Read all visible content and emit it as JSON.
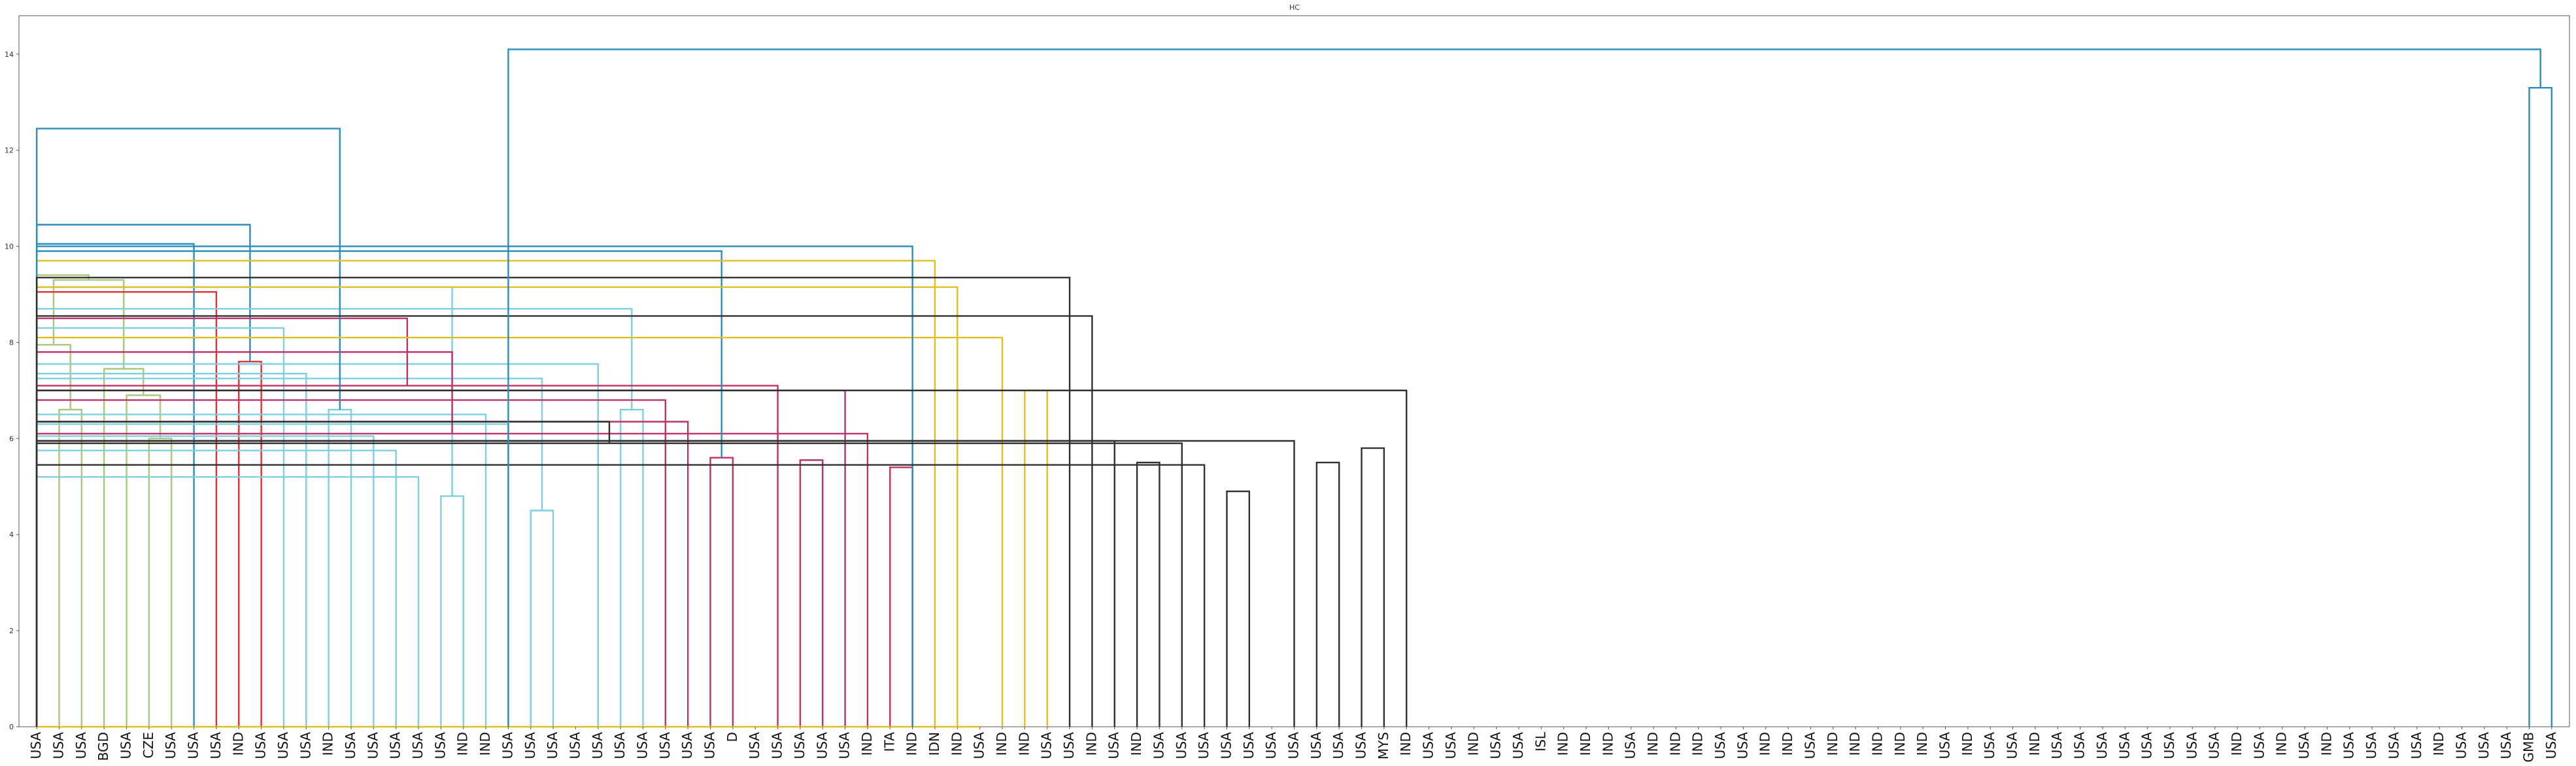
{
  "chart_data": {
    "type": "dendrogram",
    "title": "HC",
    "xlabel": "",
    "ylabel": "",
    "ylim": [
      0,
      14.8
    ],
    "yticks": [
      0,
      2,
      4,
      6,
      8,
      10,
      12,
      14
    ],
    "grid": false,
    "colors": {
      "olive": "#a8c97a",
      "blue": "#2b8cbe",
      "red": "#e03030",
      "cyan": "#7ecfe0",
      "magenta": "#c0306a",
      "yellow": "#e0c020",
      "black": "#303030"
    },
    "leaves": [
      "USA",
      "USA",
      "USA",
      "BGD",
      "USA",
      "CZE",
      "USA",
      "USA",
      "USA",
      "IND",
      "USA",
      "USA",
      "USA",
      "IND",
      "USA",
      "USA",
      "USA",
      "USA",
      "USA",
      "IND",
      "IND",
      "USA",
      "USA",
      "USA",
      "USA",
      "USA",
      "USA",
      "USA",
      "USA",
      "USA",
      "USA",
      "D",
      "USA",
      "USA",
      "USA",
      "USA",
      "USA",
      "IND",
      "ITA",
      "IND",
      "IDN",
      "IND",
      "USA",
      "IND",
      "IND",
      "USA",
      "USA",
      "IND",
      "USA",
      "IND",
      "USA",
      "USA",
      "USA",
      "USA",
      "USA",
      "USA",
      "USA",
      "USA",
      "USA",
      "USA",
      "MYS",
      "IND",
      "USA",
      "USA",
      "IND",
      "USA",
      "USA",
      "ISL",
      "IND",
      "IND",
      "IND",
      "USA",
      "IND",
      "IND",
      "IND",
      "USA",
      "USA",
      "IND",
      "IND",
      "USA",
      "IND",
      "IND",
      "IND",
      "IND",
      "IND",
      "USA",
      "IND",
      "USA",
      "USA",
      "IND",
      "USA",
      "USA",
      "USA",
      "USA",
      "USA",
      "USA",
      "USA",
      "USA",
      "IND",
      "USA",
      "IND",
      "USA",
      "IND",
      "USA",
      "USA",
      "USA",
      "USA",
      "IND",
      "USA",
      "USA",
      "USA",
      "GMB",
      "USA"
    ],
    "merges": [
      [
        1,
        2,
        6.6,
        "olive"
      ],
      [
        0,
        113,
        7.95,
        "olive"
      ],
      [
        5,
        6,
        6.0,
        "olive"
      ],
      [
        4,
        115,
        6.9,
        "olive"
      ],
      [
        3,
        116,
        7.45,
        "olive"
      ],
      [
        114,
        117,
        9.3,
        "olive"
      ],
      [
        118,
        119,
        9.4,
        "olive"
      ],
      [
        9,
        10,
        7.6,
        "red"
      ],
      [
        8,
        121,
        9.05,
        "red"
      ],
      [
        7,
        122,
        10.05,
        "blue"
      ],
      [
        120,
        123,
        10.45,
        "blue"
      ],
      [
        13,
        14,
        6.6,
        "cyan"
      ],
      [
        12,
        125,
        7.35,
        "cyan"
      ],
      [
        11,
        126,
        8.3,
        "cyan"
      ],
      [
        18,
        19,
        4.8,
        "cyan"
      ],
      [
        17,
        128,
        5.2,
        "cyan"
      ],
      [
        16,
        129,
        5.75,
        "cyan"
      ],
      [
        15,
        130,
        6.05,
        "cyan"
      ],
      [
        22,
        23,
        4.5,
        "cyan"
      ],
      [
        21,
        132,
        6.3,
        "cyan"
      ],
      [
        20,
        133,
        6.5,
        "cyan"
      ],
      [
        131,
        134,
        7.25,
        "cyan"
      ],
      [
        26,
        27,
        6.6,
        "cyan"
      ],
      [
        25,
        136,
        7.55,
        "cyan"
      ],
      [
        135,
        137,
        8.7,
        "cyan"
      ],
      [
        127,
        138,
        9.15,
        "cyan"
      ],
      [
        30,
        31,
        5.6,
        "magenta"
      ],
      [
        29,
        140,
        6.35,
        "magenta"
      ],
      [
        28,
        141,
        6.8,
        "magenta"
      ],
      [
        142,
        143,
        0.0,
        "magenta"
      ],
      [
        34,
        35,
        5.55,
        "magenta"
      ],
      [
        33,
        145,
        7.1,
        "magenta"
      ],
      [
        38,
        39,
        5.4,
        "magenta"
      ],
      [
        37,
        147,
        6.1,
        "magenta"
      ],
      [
        36,
        148,
        7.0,
        "magenta"
      ],
      [
        146,
        149,
        7.8,
        "magenta"
      ],
      [
        144,
        150,
        8.5,
        "magenta"
      ],
      [
        151,
        152,
        9.65,
        "magenta"
      ],
      [
        139,
        153,
        9.9,
        "blue"
      ],
      [
        124,
        154,
        12.45,
        "blue"
      ],
      [
        44,
        45,
        7.0,
        "yellow"
      ],
      [
        43,
        156,
        8.1,
        "yellow"
      ],
      [
        42,
        157,
        0.0,
        "yellow"
      ],
      [
        41,
        158,
        9.15,
        "yellow"
      ],
      [
        40,
        159,
        9.7,
        "yellow"
      ],
      [
        39,
        160,
        10.0,
        "blue"
      ],
      [
        49,
        50,
        5.5,
        "black"
      ],
      [
        48,
        162,
        5.95,
        "black"
      ],
      [
        53,
        54,
        4.9,
        "black"
      ],
      [
        52,
        164,
        5.45,
        "black"
      ],
      [
        51,
        165,
        5.9,
        "black"
      ],
      [
        163,
        166,
        6.35,
        "black"
      ],
      [
        57,
        58,
        5.5,
        "black"
      ],
      [
        56,
        168,
        5.95,
        "black"
      ],
      [
        167,
        169,
        7.0,
        "black"
      ],
      [
        59,
        60,
        5.8,
        "black"
      ],
      [
        61,
        171,
        7.0,
        "black"
      ],
      [
        170,
        172,
        7.55,
        "black"
      ],
      [
        47,
        173,
        8.55,
        "black"
      ],
      [
        46,
        174,
        9.35,
        "black"
      ]
    ]
  }
}
